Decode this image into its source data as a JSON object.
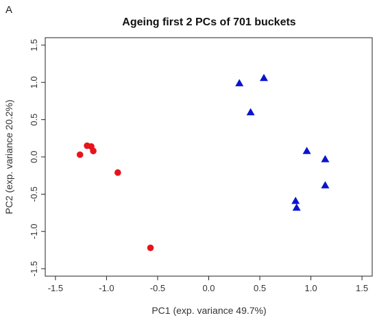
{
  "panel_label": "A",
  "chart_data": {
    "type": "scatter",
    "title": "Ageing first 2 PCs of 701 buckets",
    "xlabel": "PC1 (exp. variance 49.7%)",
    "ylabel": "PC2 (exp. variance 20.2%)",
    "xlim": [
      -1.6,
      1.6
    ],
    "ylim": [
      -1.6,
      1.6
    ],
    "xticks": [
      -1.5,
      -1.0,
      -0.5,
      0.0,
      0.5,
      1.0,
      1.5
    ],
    "xtick_labels": [
      "-1.5",
      "-1.0",
      "-0.5",
      "0.0",
      "0.5",
      "1.0",
      "1.5"
    ],
    "yticks": [
      -1.5,
      -1.0,
      -0.5,
      0.0,
      0.5,
      1.0,
      1.5
    ],
    "ytick_labels": [
      "-1.5",
      "-1.0",
      "-0.5",
      "0.0",
      "0.5",
      "1.0",
      "1.5"
    ],
    "grid": false,
    "legend": "none",
    "series": [
      {
        "marker": "circle",
        "color": "#e8141c",
        "points": [
          {
            "x": -1.26,
            "y": 0.03
          },
          {
            "x": -1.19,
            "y": 0.15
          },
          {
            "x": -1.15,
            "y": 0.14
          },
          {
            "x": -1.13,
            "y": 0.08
          },
          {
            "x": -0.89,
            "y": -0.21
          },
          {
            "x": -0.57,
            "y": -1.22
          }
        ]
      },
      {
        "marker": "triangle",
        "color": "#0a14d0",
        "points": [
          {
            "x": 0.3,
            "y": 0.99
          },
          {
            "x": 0.54,
            "y": 1.06
          },
          {
            "x": 0.41,
            "y": 0.6
          },
          {
            "x": 0.96,
            "y": 0.08
          },
          {
            "x": 1.14,
            "y": -0.03
          },
          {
            "x": 1.14,
            "y": -0.38
          },
          {
            "x": 0.85,
            "y": -0.59
          },
          {
            "x": 0.86,
            "y": -0.68
          }
        ]
      }
    ]
  }
}
